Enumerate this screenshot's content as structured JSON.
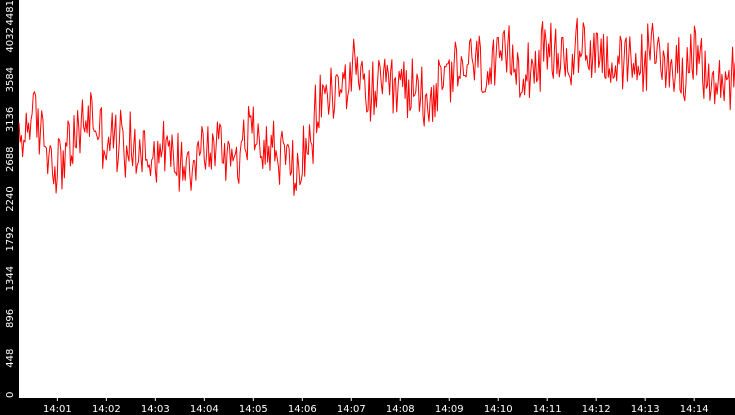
{
  "colors": {
    "series": "#ff0000",
    "axis_background": "#000000",
    "axis_text": "#ffffff",
    "plot_background": "#ffffff"
  },
  "chart_data": {
    "type": "line",
    "title": "",
    "xlabel": "",
    "ylabel": "",
    "ylim": [
      0,
      4481
    ],
    "y_ticks": [
      "0",
      "448",
      "896",
      "1344",
      "1792",
      "2240",
      "2688",
      "3136",
      "3584",
      "4032",
      "4481"
    ],
    "x_range": [
      "14:00:13",
      "14:14:50"
    ],
    "x_ticks": [
      "14:01",
      "14:02",
      "14:03",
      "14:04",
      "14:05",
      "14:06",
      "14:07",
      "14:08",
      "14:09",
      "14:10",
      "14:11",
      "14:12",
      "14:13",
      "14:14"
    ],
    "grid": false,
    "legend": "none",
    "series": [
      {
        "time_start": "14:00:13",
        "time_end": "14:14:50",
        "level_points": [
          [
            "14:00:13",
            2800
          ],
          [
            "14:00:25",
            3150
          ],
          [
            "14:00:40",
            3050
          ],
          [
            "14:00:55",
            2650
          ],
          [
            "14:01:10",
            2750
          ],
          [
            "14:01:25",
            2950
          ],
          [
            "14:01:40",
            3200
          ],
          [
            "14:01:55",
            2950
          ],
          [
            "14:02:10",
            2900
          ],
          [
            "14:02:30",
            2850
          ],
          [
            "14:02:50",
            2750
          ],
          [
            "14:03:10",
            2800
          ],
          [
            "14:03:30",
            2700
          ],
          [
            "14:03:50",
            2750
          ],
          [
            "14:04:15",
            2850
          ],
          [
            "14:04:40",
            2750
          ],
          [
            "14:05:00",
            3050
          ],
          [
            "14:05:15",
            2850
          ],
          [
            "14:05:40",
            2700
          ],
          [
            "14:05:55",
            2550
          ],
          [
            "14:06:10",
            2750
          ],
          [
            "14:06:20",
            3350
          ],
          [
            "14:06:40",
            3450
          ],
          [
            "14:07:00",
            3650
          ],
          [
            "14:07:20",
            3450
          ],
          [
            "14:07:45",
            3450
          ],
          [
            "14:08:10",
            3500
          ],
          [
            "14:08:40",
            3400
          ],
          [
            "14:09:00",
            3600
          ],
          [
            "14:09:30",
            3800
          ],
          [
            "14:09:50",
            3600
          ],
          [
            "14:10:10",
            3800
          ],
          [
            "14:10:40",
            3750
          ],
          [
            "14:11:00",
            3850
          ],
          [
            "14:11:20",
            3800
          ],
          [
            "14:11:45",
            3950
          ],
          [
            "14:12:10",
            3900
          ],
          [
            "14:12:30",
            3700
          ],
          [
            "14:12:50",
            3750
          ],
          [
            "14:13:10",
            3900
          ],
          [
            "14:13:40",
            3700
          ],
          [
            "14:14:00",
            3800
          ],
          [
            "14:14:25",
            3500
          ],
          [
            "14:14:50",
            3650
          ]
        ],
        "samples": 600,
        "noise_amplitude": 450,
        "min": 2240,
        "max": 4481
      }
    ]
  }
}
